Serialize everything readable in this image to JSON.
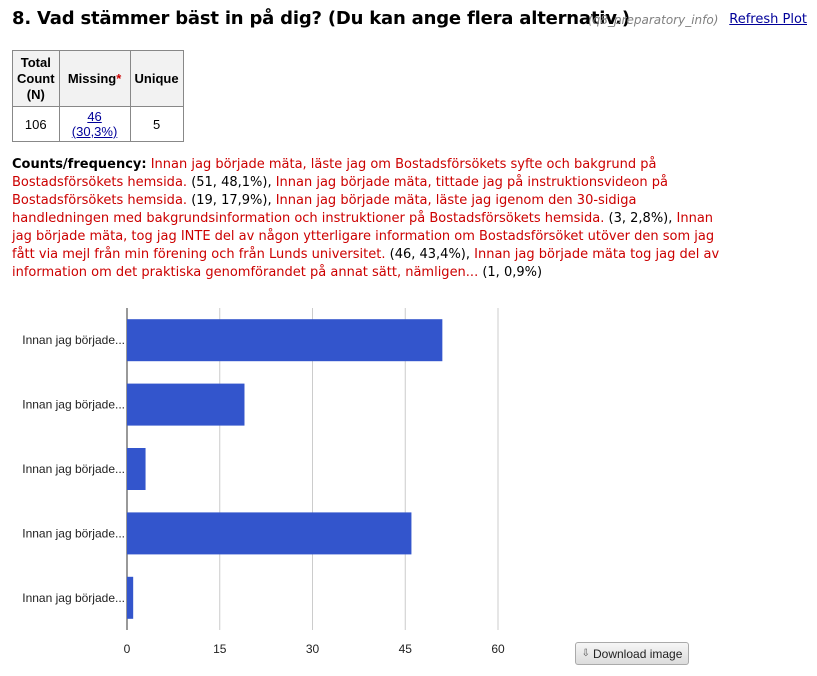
{
  "question": {
    "title": "8. Vad stämmer bäst in på dig? (Du kan ange flera alternativ.)",
    "variable": "(q8_preparatory_info)",
    "refresh_label": "Refresh Plot"
  },
  "stats_table": {
    "headers": {
      "total": "Total Count (N)",
      "missing": "Missing",
      "missing_marker": "*",
      "unique": "Unique"
    },
    "values": {
      "total": "106",
      "missing": "46 (30,3%)",
      "unique": "5"
    }
  },
  "counts": {
    "label": "Counts/frequency:",
    "items": [
      {
        "text": "Innan jag började mäta, läste jag om Bostadsförsökets syfte och bakgrund på Bostadsförsökets hemsida.",
        "freq": "(51, 48,1%)"
      },
      {
        "text": "Innan jag började mäta, tittade jag på instruktionsvideon på Bostadsförsökets hemsida.",
        "freq": "(19, 17,9%)"
      },
      {
        "text": "Innan jag började mäta, läste jag igenom den 30-sidiga handledningen med bakgrundsinformation och instruktioner på Bostadsförsökets hemsida.",
        "freq": "(3, 2,8%)"
      },
      {
        "text": "Innan jag började mäta, tog jag INTE del av någon ytterligare information om Bostadsförsöket utöver den som jag fått via mejl från min förening och från Lunds universitet.",
        "freq": "(46, 43,4%)"
      },
      {
        "text": "Innan jag började mäta tog jag del av information om det praktiska genomförandet på annat sätt, nämligen...",
        "freq": "(1, 0,9%)"
      }
    ]
  },
  "chart_data": {
    "type": "bar",
    "orientation": "horizontal",
    "categories": [
      "Innan jag började...",
      "Innan jag började...",
      "Innan jag började...",
      "Innan jag började...",
      "Innan jag började..."
    ],
    "values": [
      51,
      19,
      3,
      46,
      1
    ],
    "xlim": [
      0,
      60
    ],
    "xticks": [
      0,
      15,
      30,
      45,
      60
    ],
    "grid": true,
    "bar_color": "#3355cc",
    "title": "",
    "xlabel": "",
    "ylabel": ""
  },
  "download": {
    "label": "Download image",
    "icon": "download-arrow-icon"
  }
}
